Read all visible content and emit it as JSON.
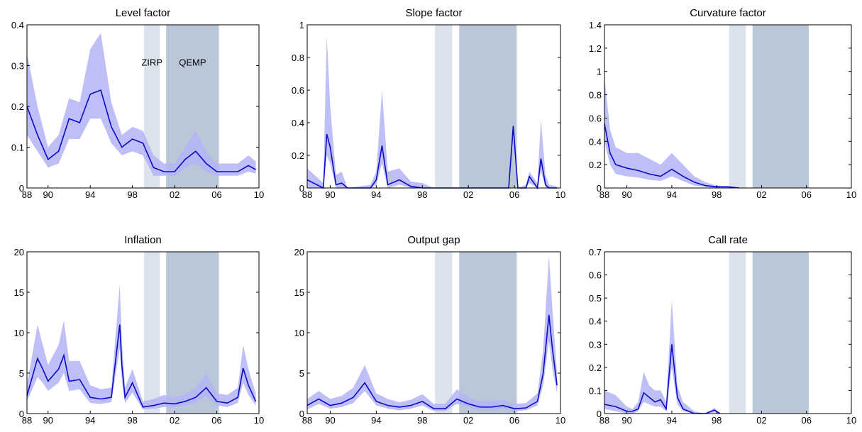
{
  "periods": [
    {
      "start": 1999.1,
      "end": 2000.6,
      "color": "#dce3ec"
    },
    {
      "start": 2001.2,
      "end": 2006.2,
      "color": "#b9c7d9"
    }
  ],
  "chart_data": [
    {
      "type": "line",
      "title": "Level factor",
      "color": "#0a0ac8",
      "band_color": "#b4b4f6",
      "xlim": [
        1988,
        2010
      ],
      "xticks": [
        {
          "value": 1988,
          "label": "88"
        },
        {
          "value": 1990,
          "label": "90"
        },
        {
          "value": 1994,
          "label": "94"
        },
        {
          "value": 1998,
          "label": "98"
        },
        {
          "value": 2002,
          "label": "02"
        },
        {
          "value": 2006,
          "label": "06"
        },
        {
          "value": 2010,
          "label": "10"
        }
      ],
      "ylim": [
        0,
        0.4
      ],
      "yticks": [
        0,
        0.1,
        0.2,
        0.3,
        0.4
      ],
      "annotations": [
        {
          "text": "ZIRP",
          "x": 1999.85,
          "y": 0.3
        },
        {
          "text": "QEMP",
          "x": 2003.7,
          "y": 0.3
        }
      ],
      "x": [
        1988,
        1989,
        1990,
        1991,
        1992,
        1993,
        1994,
        1995,
        1996,
        1997,
        1998,
        1999,
        2000,
        2001,
        2002,
        2003,
        2004,
        2005,
        2006,
        2007,
        2008,
        2009,
        2009.7
      ],
      "values": [
        0.2,
        0.13,
        0.07,
        0.09,
        0.17,
        0.16,
        0.23,
        0.24,
        0.15,
        0.1,
        0.12,
        0.11,
        0.05,
        0.04,
        0.04,
        0.07,
        0.09,
        0.06,
        0.04,
        0.04,
        0.04,
        0.055,
        0.045
      ],
      "lower": [
        0.13,
        0.09,
        0.05,
        0.06,
        0.12,
        0.12,
        0.17,
        0.17,
        0.11,
        0.08,
        0.09,
        0.08,
        0.03,
        0.03,
        0.03,
        0.05,
        0.06,
        0.04,
        0.03,
        0.03,
        0.03,
        0.04,
        0.035
      ],
      "upper": [
        0.33,
        0.2,
        0.1,
        0.13,
        0.22,
        0.21,
        0.34,
        0.38,
        0.21,
        0.13,
        0.15,
        0.14,
        0.08,
        0.06,
        0.06,
        0.1,
        0.14,
        0.09,
        0.06,
        0.06,
        0.06,
        0.08,
        0.065
      ]
    },
    {
      "type": "line",
      "title": "Slope factor",
      "color": "#0a0ac8",
      "band_color": "#b4b4f6",
      "xlim": [
        1988,
        2010
      ],
      "xticks": [
        {
          "value": 1988,
          "label": "88"
        },
        {
          "value": 1990,
          "label": "90"
        },
        {
          "value": 1994,
          "label": "94"
        },
        {
          "value": 1998,
          "label": "98"
        },
        {
          "value": 2002,
          "label": "02"
        },
        {
          "value": 2006,
          "label": "06"
        },
        {
          "value": 2010,
          "label": "10"
        }
      ],
      "ylim": [
        0,
        1
      ],
      "yticks": [
        0,
        0.2,
        0.4,
        0.6,
        0.8,
        1
      ],
      "x": [
        1988,
        1989.4,
        1989.7,
        1990,
        1990.5,
        1991,
        1991.5,
        1993.5,
        1994,
        1994.5,
        1995,
        1996,
        1997,
        1998,
        1999,
        2000,
        2002,
        2004,
        2005.5,
        2005.9,
        2006.3,
        2007,
        2007.3,
        2008,
        2008.3,
        2008.7,
        2009,
        2009.7
      ],
      "values": [
        0.05,
        0,
        0.33,
        0.25,
        0.02,
        0.03,
        0,
        0,
        0.05,
        0.26,
        0.02,
        0.05,
        0.01,
        0,
        0,
        0,
        0,
        0,
        0,
        0.38,
        0,
        0,
        0.07,
        0,
        0.18,
        0.02,
        0,
        0
      ],
      "lower": [
        0,
        0,
        0.2,
        0.15,
        0,
        0,
        0,
        0,
        0.02,
        0.15,
        0,
        0.02,
        0,
        0,
        0,
        0,
        0,
        0,
        0,
        0.3,
        0,
        0,
        0.03,
        0,
        0.1,
        0,
        0,
        0
      ],
      "upper": [
        0.12,
        0.03,
        0.93,
        0.5,
        0.08,
        0.1,
        0,
        0.02,
        0.1,
        0.6,
        0.1,
        0.12,
        0.04,
        0.03,
        0,
        0,
        0,
        0,
        0,
        0.4,
        0,
        0.02,
        0.1,
        0.03,
        0.42,
        0.08,
        0.02,
        0.01
      ]
    },
    {
      "type": "line",
      "title": "Curvature factor",
      "color": "#0a0ac8",
      "band_color": "#b4b4f6",
      "xlim": [
        1988,
        2010
      ],
      "xticks": [
        {
          "value": 1988,
          "label": "88"
        },
        {
          "value": 1990,
          "label": "90"
        },
        {
          "value": 1994,
          "label": "94"
        },
        {
          "value": 1998,
          "label": "98"
        },
        {
          "value": 2002,
          "label": "02"
        },
        {
          "value": 2006,
          "label": "06"
        },
        {
          "value": 2010,
          "label": "10"
        }
      ],
      "ylim": [
        0,
        1.4
      ],
      "yticks": [
        0,
        0.2,
        0.4,
        0.6,
        0.8,
        1,
        1.2,
        1.4
      ],
      "x": [
        1988,
        1988.5,
        1989,
        1990,
        1991,
        1992,
        1993,
        1994,
        1995,
        1996,
        1997,
        1998,
        1999,
        2000
      ],
      "values": [
        0.55,
        0.3,
        0.2,
        0.17,
        0.15,
        0.12,
        0.1,
        0.16,
        0.1,
        0.05,
        0.02,
        0.01,
        0.01,
        0
      ],
      "lower": [
        0.4,
        0.2,
        0.12,
        0.1,
        0.09,
        0.07,
        0.06,
        0.1,
        0.06,
        0.02,
        0.01,
        0,
        0,
        0
      ],
      "upper": [
        0.95,
        0.5,
        0.35,
        0.3,
        0.3,
        0.25,
        0.2,
        0.3,
        0.2,
        0.1,
        0.05,
        0.02,
        0.01,
        0
      ]
    },
    {
      "type": "line",
      "title": "Inflation",
      "color": "#0a0ac8",
      "band_color": "#b4b4f6",
      "xlim": [
        1988,
        2010
      ],
      "xticks": [
        {
          "value": 1988,
          "label": "88"
        },
        {
          "value": 1990,
          "label": "90"
        },
        {
          "value": 1994,
          "label": "94"
        },
        {
          "value": 1998,
          "label": "98"
        },
        {
          "value": 2002,
          "label": "02"
        },
        {
          "value": 2006,
          "label": "06"
        },
        {
          "value": 2010,
          "label": "10"
        }
      ],
      "ylim": [
        0,
        20
      ],
      "yticks": [
        0,
        5,
        10,
        15,
        20
      ],
      "x": [
        1988,
        1989,
        1989.5,
        1990,
        1991,
        1991.5,
        1992,
        1993,
        1994,
        1995,
        1996,
        1996.8,
        1997,
        1997.3,
        1998,
        1999,
        2000,
        2001,
        2002,
        2003,
        2004,
        2005,
        2006,
        2007,
        2008,
        2008.5,
        2009,
        2009.7
      ],
      "values": [
        2.2,
        6.8,
        5.5,
        4,
        5.5,
        7.2,
        4,
        4.2,
        2,
        1.8,
        2,
        11,
        6,
        2,
        3.8,
        0.8,
        1,
        1.3,
        1.2,
        1.5,
        2,
        3.2,
        1.5,
        1.3,
        2,
        5.6,
        3.5,
        1.5
      ],
      "lower": [
        1.5,
        4.5,
        3.8,
        2.8,
        3.8,
        5,
        2.8,
        3,
        1.3,
        1.2,
        1.4,
        8,
        4,
        1.3,
        2.6,
        0.5,
        0.6,
        0.8,
        0.8,
        1,
        1.3,
        2.2,
        1,
        0.8,
        1.3,
        3.8,
        2.3,
        1
      ],
      "upper": [
        3.5,
        11,
        8.5,
        6,
        8.5,
        11.5,
        6.5,
        6.5,
        3.5,
        3,
        3.2,
        16,
        9,
        3.2,
        5.5,
        1.5,
        1.8,
        2.3,
        2,
        2.4,
        3.2,
        5,
        2.5,
        2.3,
        3.2,
        8.5,
        5.5,
        2.5
      ]
    },
    {
      "type": "line",
      "title": "Output gap",
      "color": "#0a0ac8",
      "band_color": "#b4b4f6",
      "xlim": [
        1988,
        2010
      ],
      "xticks": [
        {
          "value": 1988,
          "label": "88"
        },
        {
          "value": 1990,
          "label": "90"
        },
        {
          "value": 1994,
          "label": "94"
        },
        {
          "value": 1998,
          "label": "98"
        },
        {
          "value": 2002,
          "label": "02"
        },
        {
          "value": 2006,
          "label": "06"
        },
        {
          "value": 2010,
          "label": "10"
        }
      ],
      "ylim": [
        0,
        20
      ],
      "yticks": [
        0,
        5,
        10,
        15,
        20
      ],
      "x": [
        1988,
        1989,
        1990,
        1991,
        1992,
        1993,
        1994,
        1995,
        1996,
        1997,
        1998,
        1999,
        2000,
        2001,
        2002,
        2003,
        2004,
        2005,
        2006,
        2007,
        2008,
        2008.5,
        2009,
        2009.3,
        2009.7
      ],
      "values": [
        1,
        1.8,
        1,
        1.3,
        2,
        3.8,
        1.5,
        1,
        0.8,
        1,
        1.5,
        0.6,
        0.6,
        1.8,
        1.2,
        0.8,
        0.8,
        1,
        0.6,
        0.7,
        1.5,
        5,
        12.2,
        8,
        3.5
      ],
      "lower": [
        0.5,
        1.2,
        0.6,
        0.8,
        1.3,
        2.8,
        1,
        0.6,
        0.4,
        0.6,
        1,
        0.3,
        0.3,
        1.2,
        0.8,
        0.4,
        0.4,
        0.6,
        0.3,
        0.4,
        1,
        3.5,
        9,
        5.5,
        2.5
      ],
      "upper": [
        1.8,
        2.8,
        1.8,
        2.2,
        3.2,
        6,
        2.5,
        1.8,
        1.4,
        1.7,
        2.4,
        1.2,
        1.2,
        3,
        2,
        1.5,
        1.5,
        1.7,
        1.2,
        1.3,
        2.5,
        8,
        19.5,
        13,
        5
      ]
    },
    {
      "type": "line",
      "title": "Call rate",
      "color": "#0a0ac8",
      "band_color": "#b4b4f6",
      "xlim": [
        1988,
        2010
      ],
      "xticks": [
        {
          "value": 1988,
          "label": "88"
        },
        {
          "value": 1990,
          "label": "90"
        },
        {
          "value": 1994,
          "label": "94"
        },
        {
          "value": 1998,
          "label": "98"
        },
        {
          "value": 2002,
          "label": "02"
        },
        {
          "value": 2006,
          "label": "06"
        },
        {
          "value": 2010,
          "label": "10"
        }
      ],
      "ylim": [
        0,
        0.7
      ],
      "yticks": [
        0,
        0.1,
        0.2,
        0.3,
        0.4,
        0.5,
        0.6,
        0.7
      ],
      "x": [
        1988,
        1989,
        1990,
        1990.5,
        1991,
        1991.5,
        1992,
        1992.5,
        1993,
        1993.5,
        1994,
        1994.5,
        1995,
        1996,
        1997,
        1997.8,
        1998.3
      ],
      "values": [
        0.04,
        0.03,
        0.01,
        0.01,
        0.02,
        0.09,
        0.07,
        0.05,
        0.06,
        0.02,
        0.3,
        0.07,
        0.02,
        0,
        0,
        0.015,
        0
      ],
      "lower": [
        0.02,
        0.01,
        0,
        0,
        0.01,
        0.05,
        0.04,
        0.03,
        0.03,
        0.01,
        0.2,
        0.04,
        0.01,
        0,
        0,
        0.005,
        0
      ],
      "upper": [
        0.1,
        0.08,
        0.03,
        0.02,
        0.05,
        0.18,
        0.12,
        0.1,
        0.1,
        0.05,
        0.49,
        0.12,
        0.05,
        0.01,
        0,
        0.025,
        0
      ]
    }
  ]
}
